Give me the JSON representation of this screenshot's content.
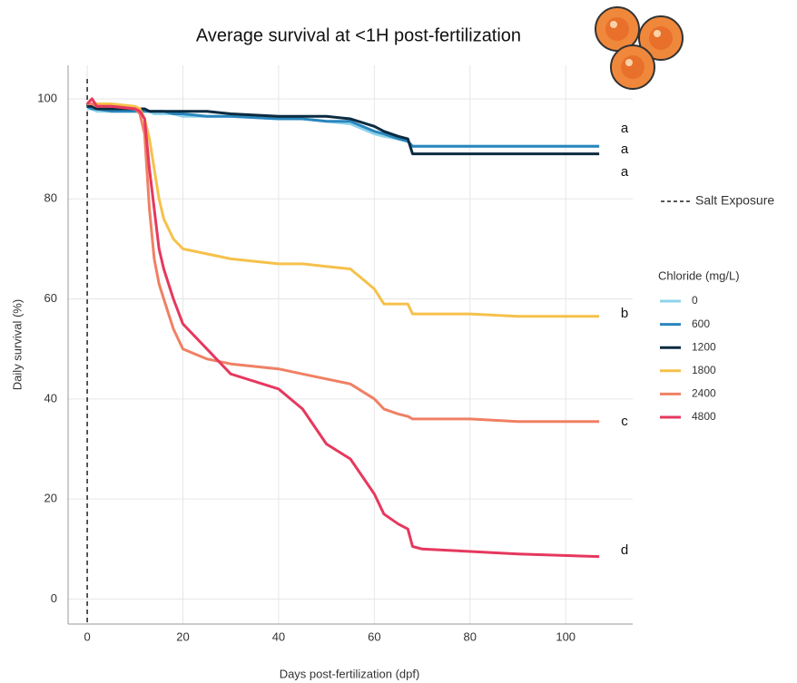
{
  "chart_data": {
    "type": "line",
    "title": "Average survival at <1H post-fertilization",
    "x_label": "Days post-fertilization (dpf)",
    "y_label": "Daily survival (%)",
    "legend_title": "Chloride (mg/L)",
    "vline": {
      "x": 0,
      "label": "Salt Exposure"
    },
    "annotations": [
      "a",
      "a",
      "a",
      "b",
      "c",
      "d"
    ],
    "x": [
      0,
      1,
      2,
      5,
      10,
      11,
      12,
      13,
      14,
      15,
      16,
      18,
      20,
      25,
      30,
      40,
      45,
      50,
      55,
      60,
      62,
      65,
      67,
      68,
      70,
      80,
      90,
      107
    ],
    "series": [
      {
        "name": "0",
        "color": "#8fd3ea",
        "values": [
          98,
          98,
          97.5,
          97.5,
          97.5,
          97.5,
          97.5,
          97.5,
          97,
          97,
          97,
          97,
          96.5,
          96.5,
          96.5,
          96,
          96,
          95.5,
          95,
          93,
          92.5,
          92,
          91.5,
          90.5,
          90.5,
          90.5,
          90.5,
          90.5
        ]
      },
      {
        "name": "600",
        "color": "#2a86bd",
        "values": [
          98.5,
          98,
          98,
          97.5,
          97.5,
          97.5,
          97.5,
          97.5,
          97.5,
          97.5,
          97.5,
          97,
          97,
          96.5,
          96.5,
          96,
          96,
          95.5,
          95.5,
          93.5,
          93,
          92,
          91.5,
          90.5,
          90.5,
          90.5,
          90.5,
          90.5
        ]
      },
      {
        "name": "1200",
        "color": "#0c2b40",
        "values": [
          98.5,
          98.5,
          98,
          98,
          98,
          98,
          98,
          97.5,
          97.5,
          97.5,
          97.5,
          97.5,
          97.5,
          97.5,
          97,
          96.5,
          96.5,
          96.5,
          96,
          94.5,
          93.5,
          92.5,
          92,
          89,
          89,
          89,
          89,
          89
        ]
      },
      {
        "name": "1800",
        "color": "#f6c14b",
        "values": [
          99,
          99,
          99,
          99,
          98.5,
          98,
          96,
          92,
          86,
          80,
          76,
          72,
          70,
          69,
          68,
          67,
          67,
          66.5,
          66,
          62,
          59,
          59,
          59,
          57,
          57,
          57,
          56.5,
          56.5
        ]
      },
      {
        "name": "2400",
        "color": "#f08064",
        "values": [
          99,
          99,
          98.5,
          98.5,
          98,
          97,
          93,
          78,
          68,
          63,
          60,
          54,
          50,
          48,
          47,
          46,
          45,
          44,
          43,
          40,
          38,
          37,
          36.5,
          36,
          36,
          36,
          35.5,
          35.5
        ]
      },
      {
        "name": "4800",
        "color": "#e6385e",
        "values": [
          99,
          100,
          98.5,
          98.5,
          98,
          97.5,
          96,
          86,
          78,
          70,
          66,
          60,
          55,
          50,
          45,
          42,
          38,
          31,
          28,
          21,
          17,
          15,
          14,
          10.5,
          10,
          9.5,
          9,
          8.5
        ]
      }
    ],
    "xlim": [
      -4,
      114
    ],
    "ylim": [
      -5,
      106.7
    ],
    "xticks": [
      0,
      20,
      40,
      60,
      80,
      100
    ],
    "yticks": [
      0,
      20,
      40,
      60,
      80,
      100
    ],
    "grid": true
  }
}
